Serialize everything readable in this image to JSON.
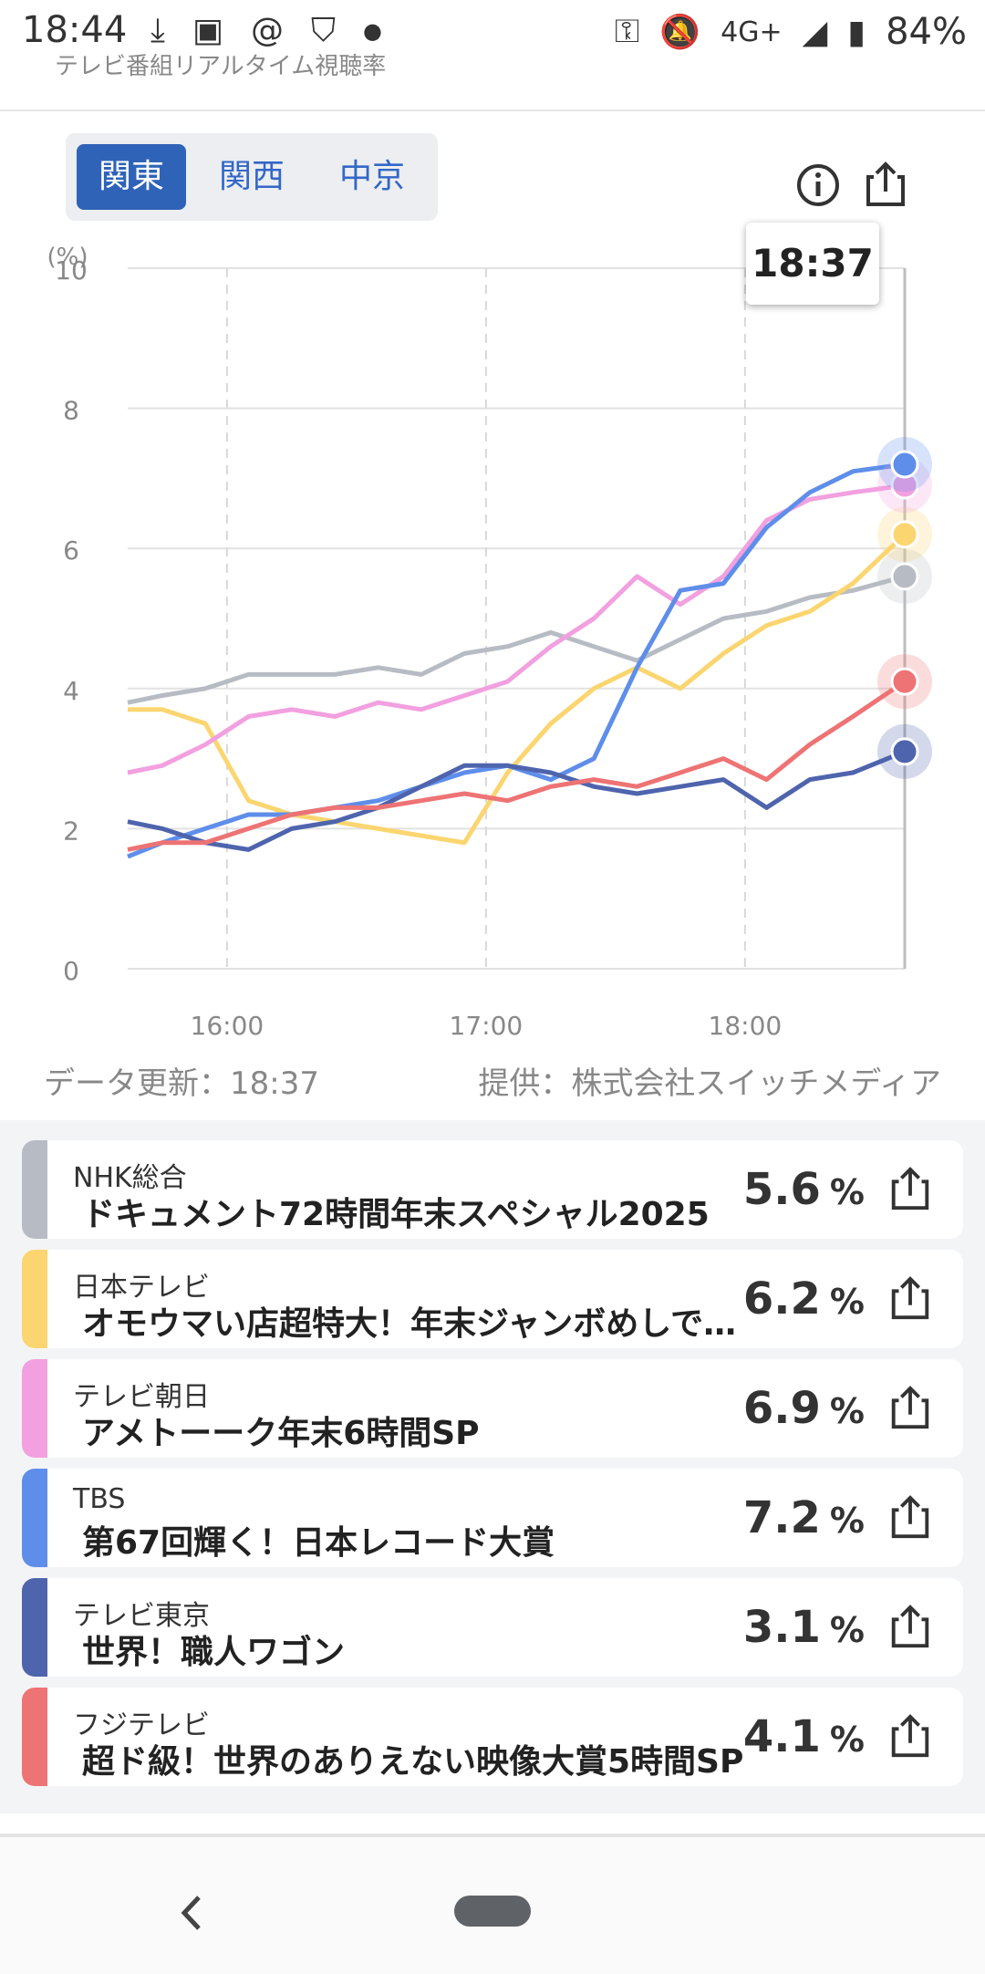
{
  "status_bar": {
    "time": "18:44",
    "icons_left": [
      "download-done-icon",
      "image-icon",
      "threads-icon",
      "shield-icon",
      "dot-icon"
    ],
    "network": "4G+",
    "battery": "84%"
  },
  "header": {
    "title_clipped": "テレビ番組リアルタイム視聴率"
  },
  "regions": {
    "tabs": [
      "関東",
      "関西",
      "中京"
    ],
    "active": "関東"
  },
  "chart_data": {
    "type": "line",
    "tooltip_time": "18:37",
    "y_unit": "(%)",
    "ylim": [
      0,
      10
    ],
    "y_ticks": [
      "0",
      "2",
      "4",
      "6",
      "8",
      "10"
    ],
    "x_ticks": [
      "16:00",
      "17:00",
      "18:00"
    ],
    "x_range": [
      "15:37",
      "18:37"
    ],
    "grid": true,
    "series": [
      {
        "name": "NHK総合",
        "color": "#b7bcc4",
        "x": [
          "15:37",
          "15:45",
          "15:55",
          "16:05",
          "16:15",
          "16:25",
          "16:35",
          "16:45",
          "16:55",
          "17:05",
          "17:15",
          "17:25",
          "17:35",
          "17:45",
          "17:55",
          "18:05",
          "18:15",
          "18:25",
          "18:37"
        ],
        "values": [
          3.8,
          3.9,
          4.0,
          4.2,
          4.2,
          4.2,
          4.3,
          4.2,
          4.5,
          4.6,
          4.8,
          4.6,
          4.4,
          4.7,
          5.0,
          5.1,
          5.3,
          5.4,
          5.6
        ]
      },
      {
        "name": "日本テレビ",
        "color": "#fbd56f",
        "x": [
          "15:37",
          "15:45",
          "15:55",
          "16:05",
          "16:15",
          "16:25",
          "16:35",
          "16:45",
          "16:55",
          "17:05",
          "17:15",
          "17:25",
          "17:35",
          "17:45",
          "17:55",
          "18:05",
          "18:15",
          "18:25",
          "18:37"
        ],
        "values": [
          3.7,
          3.7,
          3.5,
          2.4,
          2.2,
          2.1,
          2.0,
          1.9,
          1.8,
          2.8,
          3.5,
          4.0,
          4.3,
          4.0,
          4.5,
          4.9,
          5.1,
          5.5,
          6.2
        ]
      },
      {
        "name": "テレビ朝日",
        "color": "#f2a0df",
        "x": [
          "15:37",
          "15:45",
          "15:55",
          "16:05",
          "16:15",
          "16:25",
          "16:35",
          "16:45",
          "16:55",
          "17:05",
          "17:15",
          "17:25",
          "17:35",
          "17:45",
          "17:55",
          "18:05",
          "18:15",
          "18:25",
          "18:37"
        ],
        "values": [
          2.8,
          2.9,
          3.2,
          3.6,
          3.7,
          3.6,
          3.8,
          3.7,
          3.9,
          4.1,
          4.6,
          5.0,
          5.6,
          5.2,
          5.6,
          6.4,
          6.7,
          6.8,
          6.9
        ]
      },
      {
        "name": "TBS",
        "color": "#5f8eea",
        "x": [
          "15:37",
          "15:45",
          "15:55",
          "16:05",
          "16:15",
          "16:25",
          "16:35",
          "16:45",
          "16:55",
          "17:05",
          "17:15",
          "17:25",
          "17:35",
          "17:45",
          "17:55",
          "18:05",
          "18:15",
          "18:25",
          "18:37"
        ],
        "values": [
          1.6,
          1.8,
          2.0,
          2.2,
          2.2,
          2.3,
          2.4,
          2.6,
          2.8,
          2.9,
          2.7,
          3.0,
          4.3,
          5.4,
          5.5,
          6.3,
          6.8,
          7.1,
          7.2
        ]
      },
      {
        "name": "テレビ東京",
        "color": "#4e64ad",
        "x": [
          "15:37",
          "15:45",
          "15:55",
          "16:05",
          "16:15",
          "16:25",
          "16:35",
          "16:45",
          "16:55",
          "17:05",
          "17:15",
          "17:25",
          "17:35",
          "17:45",
          "17:55",
          "18:05",
          "18:15",
          "18:25",
          "18:37"
        ],
        "values": [
          2.1,
          2.0,
          1.8,
          1.7,
          2.0,
          2.1,
          2.3,
          2.6,
          2.9,
          2.9,
          2.8,
          2.6,
          2.5,
          2.6,
          2.7,
          2.3,
          2.7,
          2.8,
          3.1
        ]
      },
      {
        "name": "フジテレビ",
        "color": "#ee7374",
        "x": [
          "15:37",
          "15:45",
          "15:55",
          "16:05",
          "16:15",
          "16:25",
          "16:35",
          "16:45",
          "16:55",
          "17:05",
          "17:15",
          "17:25",
          "17:35",
          "17:45",
          "17:55",
          "18:05",
          "18:15",
          "18:25",
          "18:37"
        ],
        "values": [
          1.7,
          1.8,
          1.8,
          2.0,
          2.2,
          2.3,
          2.3,
          2.4,
          2.5,
          2.4,
          2.6,
          2.7,
          2.6,
          2.8,
          3.0,
          2.7,
          3.2,
          3.6,
          4.1
        ]
      }
    ]
  },
  "footer_notes": {
    "updated": "データ更新：18:37",
    "provider": "提供：株式会社スイッチメディア"
  },
  "channels": [
    {
      "channel": "NHK総合",
      "program": "ドキュメント72時間年末スペシャル2025",
      "rating": "5.6",
      "unit": "%",
      "color": "#b7bcc4"
    },
    {
      "channel": "日本テレビ",
      "program": "オモウマい店超特大！年末ジャンボめしで…",
      "rating": "6.2",
      "unit": "%",
      "color": "#fbd56f"
    },
    {
      "channel": "テレビ朝日",
      "program": "アメトーーク年末6時間SP",
      "rating": "6.9",
      "unit": "%",
      "color": "#f2a0df"
    },
    {
      "channel": "TBS",
      "program": "第67回輝く！日本レコード大賞",
      "rating": "7.2",
      "unit": "%",
      "color": "#5f8eea"
    },
    {
      "channel": "テレビ東京",
      "program": "世界！職人ワゴン",
      "rating": "3.1",
      "unit": "%",
      "color": "#4e64ad"
    },
    {
      "channel": "フジテレビ",
      "program": "超ド級！世界のありえない映像大賞5時間SP",
      "rating": "4.1",
      "unit": "%",
      "color": "#ee7374"
    }
  ],
  "nav": {
    "back_icon": "chevron-left-icon",
    "home_icon": "home-pill-icon"
  }
}
